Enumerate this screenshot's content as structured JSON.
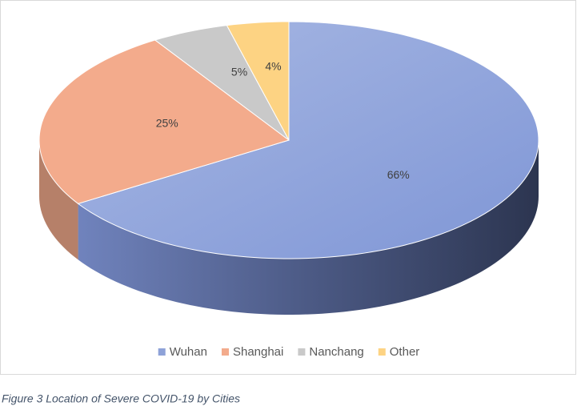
{
  "chart_data": {
    "type": "pie3d",
    "categories": [
      "Wuhan",
      "Shanghai",
      "Nanchang",
      "Other"
    ],
    "values": [
      66,
      25,
      5,
      4
    ],
    "value_labels": [
      "66%",
      "25%",
      "5%",
      "4%"
    ],
    "colors": [
      "#8ea2d8",
      "#f3ab8c",
      "#c9c9c9",
      "#fdd383"
    ],
    "legend": "bottom"
  },
  "caption": "Figure 3 Location of Severe COVID-19 by Cities"
}
